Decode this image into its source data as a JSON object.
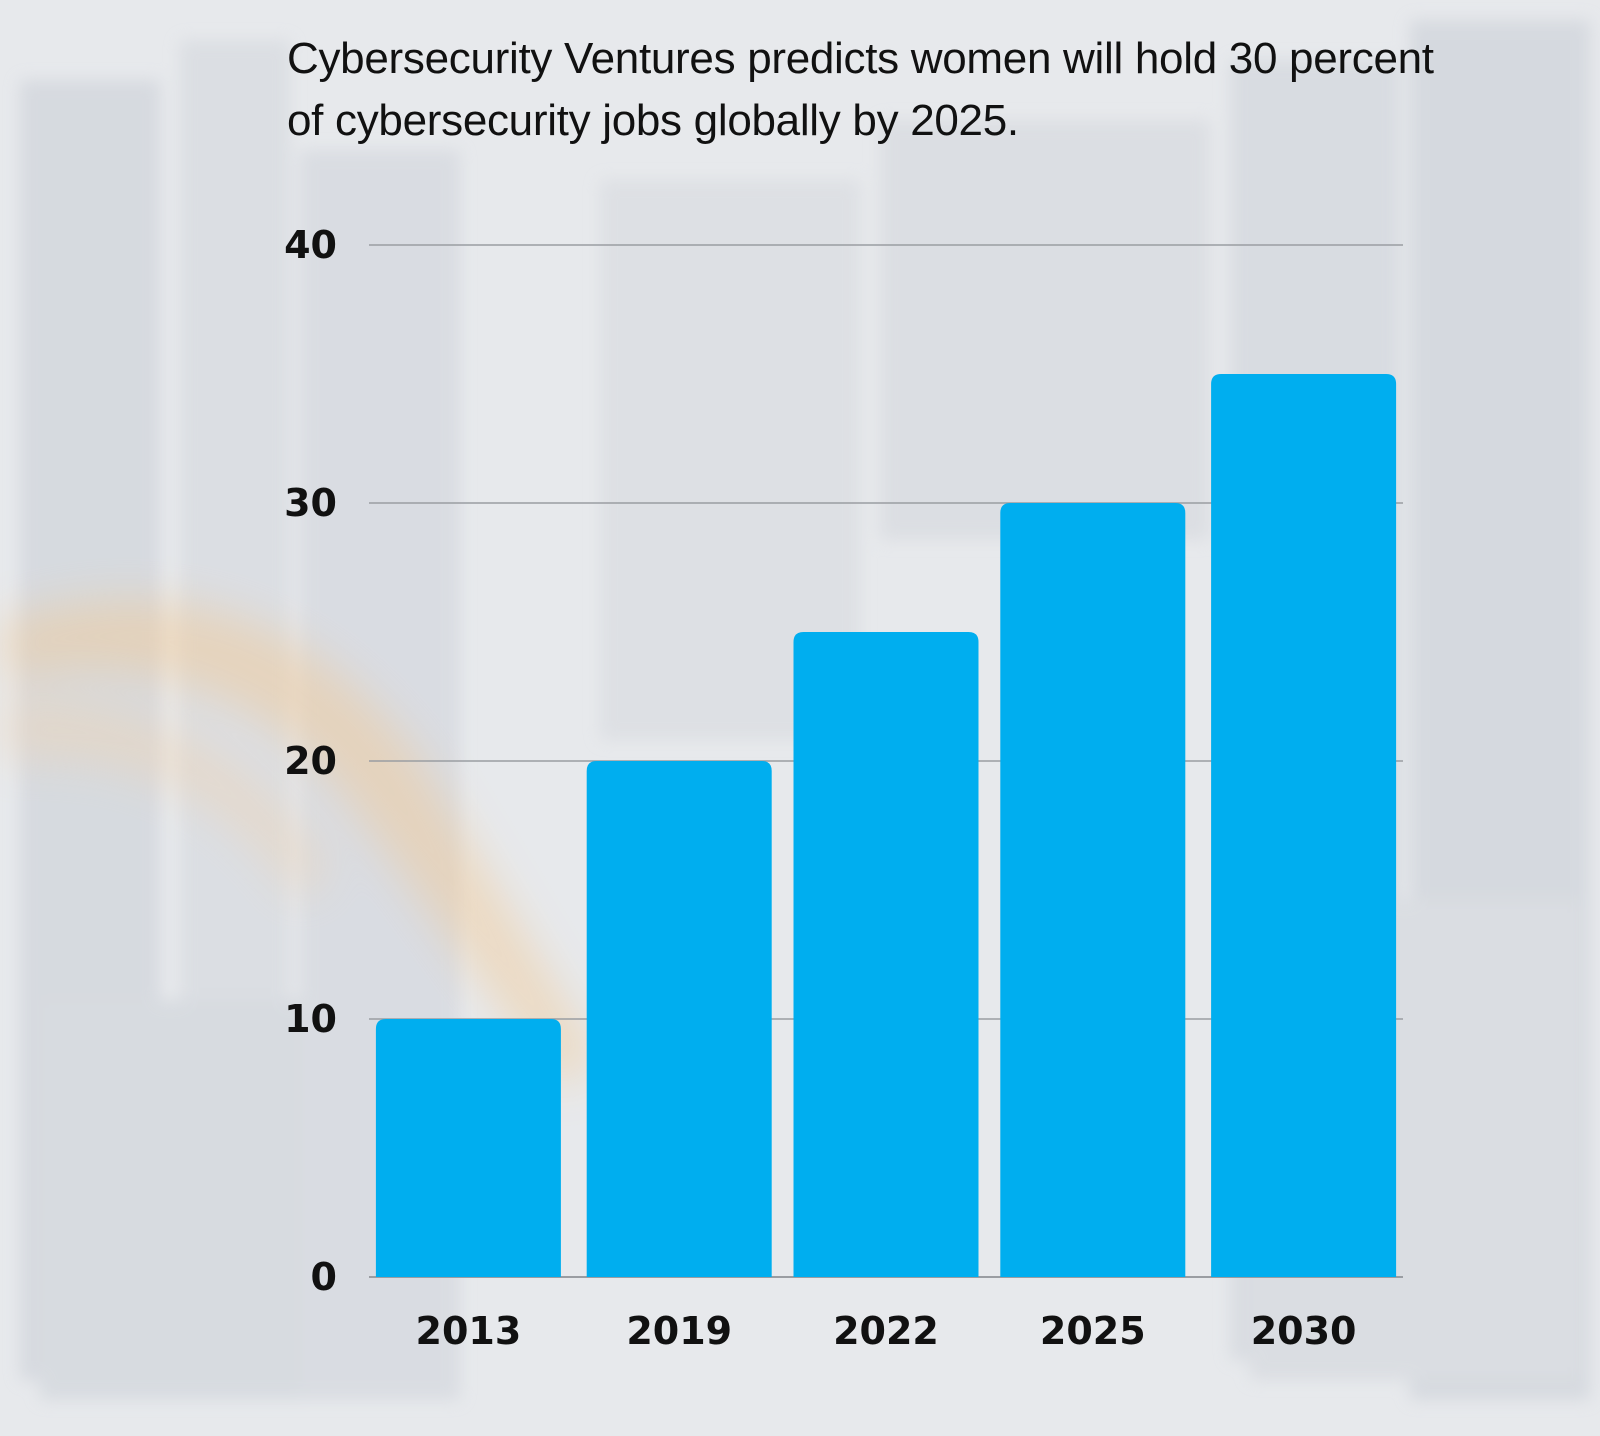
{
  "colors": {
    "bar": "#00aeef",
    "gridline": "#9a9da2",
    "text": "#111111"
  },
  "chart_data": {
    "type": "bar",
    "title": "Cybersecurity Ventures predicts women will hold 30 percent of cybersecurity jobs globally by 2025.",
    "xlabel": "",
    "ylabel": "",
    "categories": [
      "2013",
      "2019",
      "2022",
      "2025",
      "2030"
    ],
    "values": [
      10,
      20,
      25,
      30,
      35
    ],
    "ylim": [
      0,
      40
    ],
    "yticks": [
      0,
      10,
      20,
      30,
      40
    ],
    "grid": true,
    "legend": "none"
  }
}
